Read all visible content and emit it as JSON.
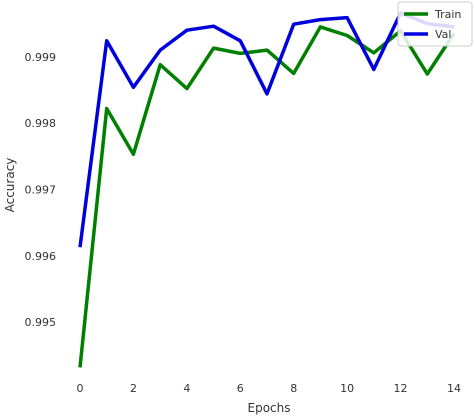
{
  "chart_data": {
    "type": "line",
    "xlabel": "Epochs",
    "ylabel": "Accuracy",
    "xlim": [
      -0.6,
      14.6
    ],
    "ylim": [
      0.99425,
      0.99978
    ],
    "xticks": [
      0,
      2,
      4,
      6,
      8,
      10,
      12,
      14
    ],
    "yticks": [
      0.995,
      0.996,
      0.997,
      0.998,
      0.999
    ],
    "ytick_labels": [
      "0.995",
      "0.996",
      "0.997",
      "0.998",
      "0.999"
    ],
    "grid": false,
    "legend_position": "top-right",
    "x": [
      0,
      1,
      2,
      3,
      4,
      5,
      6,
      7,
      8,
      9,
      10,
      11,
      12,
      13,
      14
    ],
    "series": [
      {
        "name": "Train",
        "color": "#008000",
        "values": [
          0.99432,
          0.99822,
          0.99753,
          0.99888,
          0.99852,
          0.99913,
          0.99905,
          0.9991,
          0.99875,
          0.99945,
          0.99932,
          0.99906,
          0.99939,
          0.99874,
          0.99935
        ]
      },
      {
        "name": "Val",
        "color": "#0000dd",
        "values": [
          0.99613,
          0.99924,
          0.99854,
          0.9991,
          0.9994,
          0.99946,
          0.99924,
          0.99844,
          0.99949,
          0.99956,
          0.99959,
          0.99881,
          0.99966,
          0.9995,
          0.99945
        ]
      }
    ]
  }
}
